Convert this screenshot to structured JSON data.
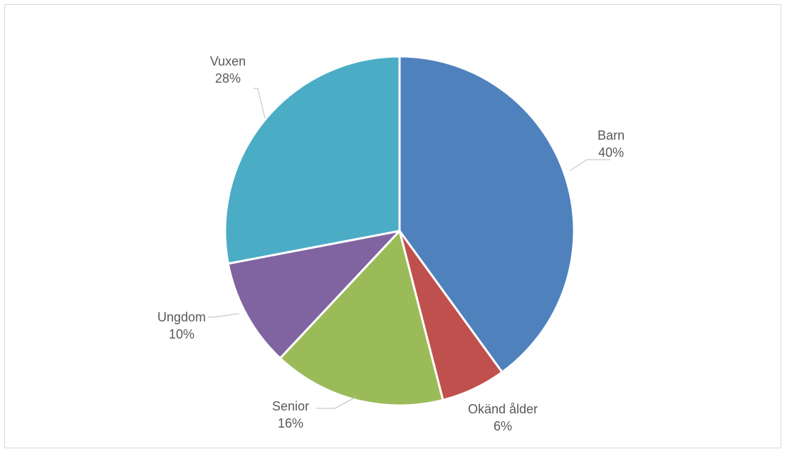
{
  "chart_data": {
    "type": "pie",
    "title": "",
    "legend": "none",
    "slices": [
      {
        "label": "Barn",
        "value": 40,
        "percent_text": "40%",
        "color": "#4f81bd"
      },
      {
        "label": "Okänd ålder",
        "value": 6,
        "percent_text": "6%",
        "color": "#c0504d"
      },
      {
        "label": "Senior",
        "value": 16,
        "percent_text": "16%",
        "color": "#9bbb59"
      },
      {
        "label": "Ungdom",
        "value": 10,
        "percent_text": "10%",
        "color": "#8064a2"
      },
      {
        "label": "Vuxen",
        "value": 28,
        "percent_text": "28%",
        "color": "#4bacc6"
      }
    ]
  }
}
